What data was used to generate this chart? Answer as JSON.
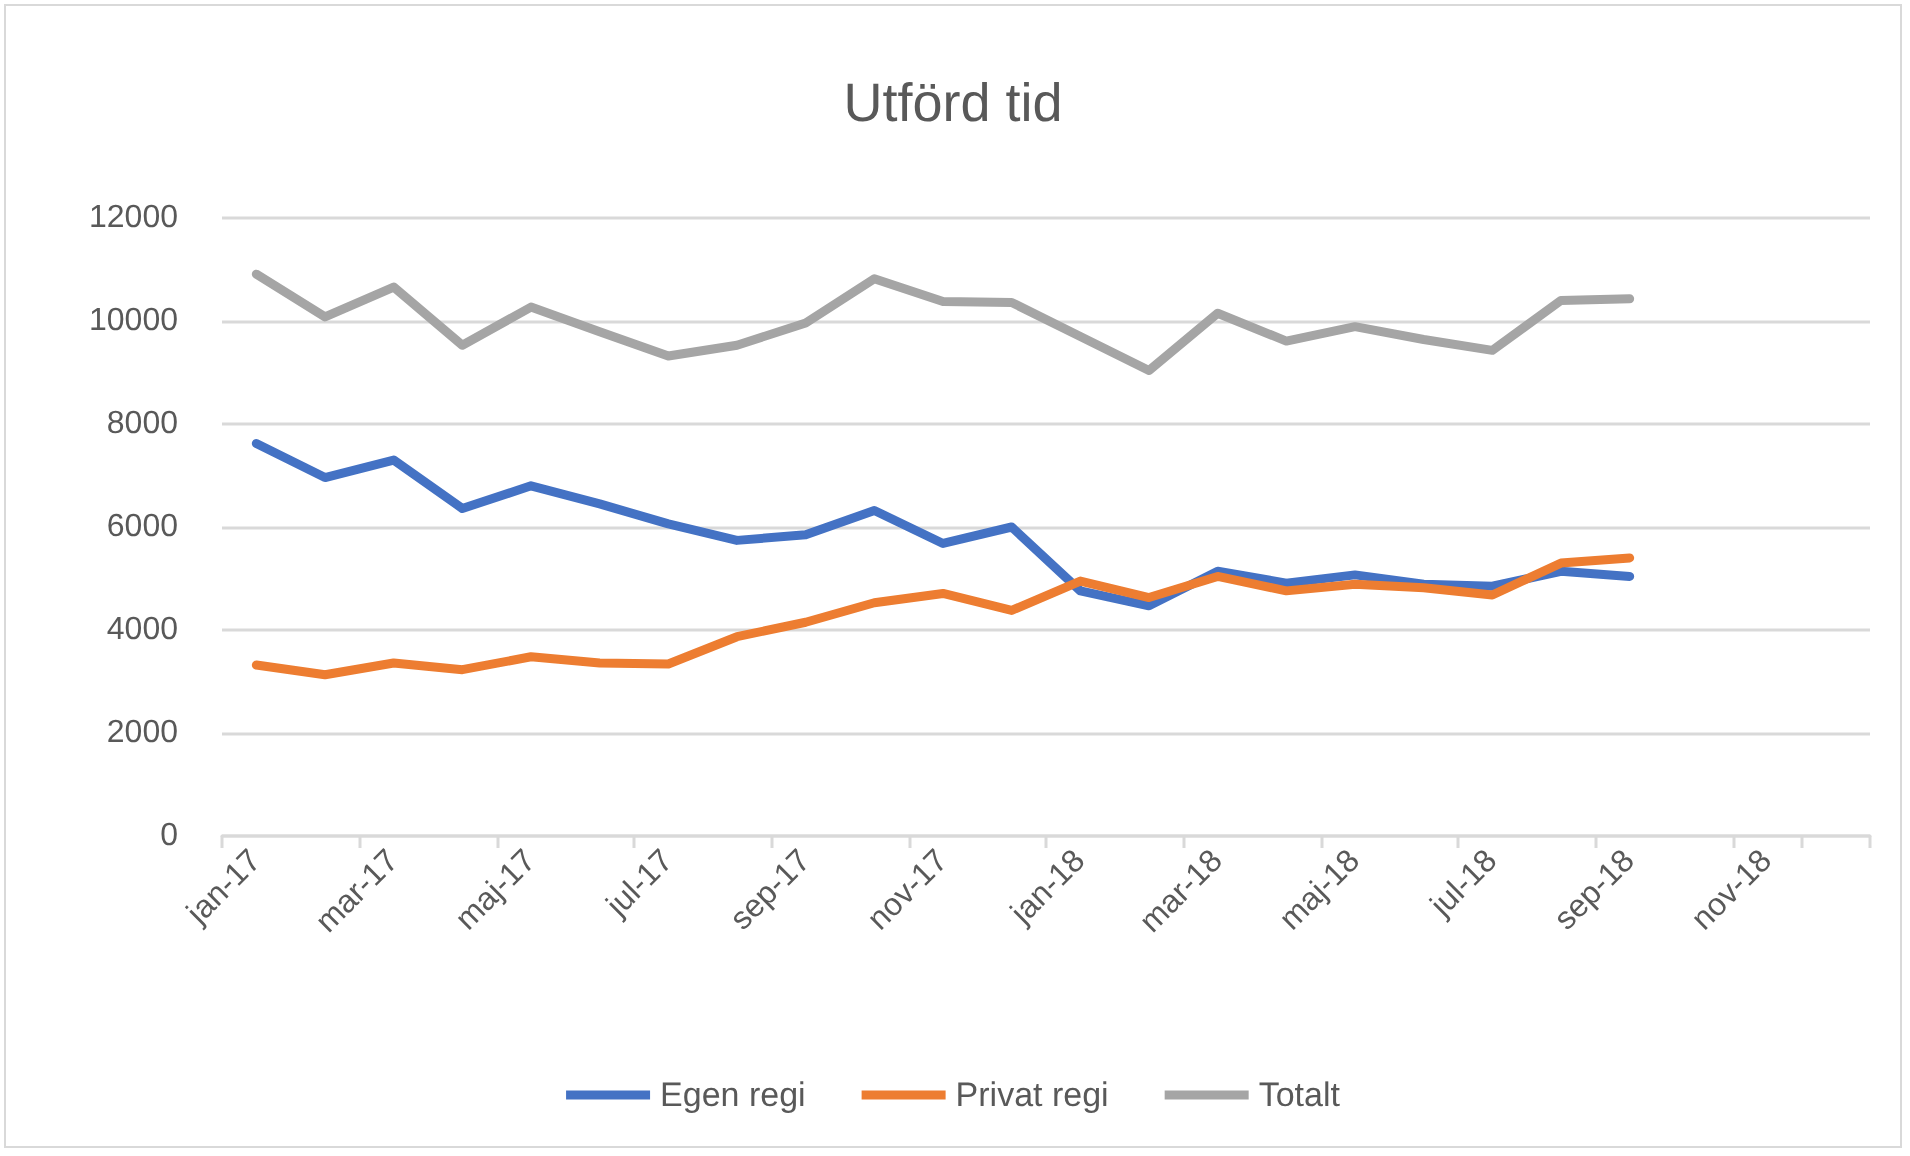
{
  "chart_data": {
    "type": "line",
    "title": "Utförd tid",
    "categories": [
      "jan-17",
      null,
      "mar-17",
      null,
      "maj-17",
      null,
      "jul-17",
      null,
      "sep-17",
      null,
      "nov-17",
      null,
      "jan-18",
      null,
      "mar-18",
      null,
      "maj-18",
      null,
      "jul-18",
      null,
      "sep-18",
      null,
      "nov-18",
      null
    ],
    "series": [
      {
        "name": "Egen regi",
        "color": "#4472c4",
        "values": [
          7620,
          6960,
          7300,
          6360,
          6800,
          6450,
          6060,
          5740,
          5850,
          6320,
          5680,
          6000,
          4760,
          4470,
          5140,
          4910,
          5070,
          4890,
          4850,
          5140,
          5040,
          null,
          null,
          null
        ]
      },
      {
        "name": "Privat regi",
        "color": "#ed7d31",
        "values": [
          3320,
          3130,
          3360,
          3230,
          3480,
          3360,
          3340,
          3870,
          4150,
          4530,
          4710,
          4380,
          4950,
          4630,
          5040,
          4760,
          4890,
          4820,
          4680,
          5300,
          5400,
          null,
          null,
          null
        ]
      },
      {
        "name": "Totalt",
        "color": "#a5a5a5",
        "values": [
          10910,
          10080,
          10660,
          9530,
          10270,
          9790,
          9320,
          9530,
          9960,
          10820,
          10380,
          10360,
          9700,
          9040,
          10150,
          9610,
          9890,
          9640,
          9430,
          10400,
          10430,
          null,
          null,
          null
        ]
      }
    ],
    "ylim": [
      0,
      12000
    ],
    "yticks": [
      0,
      2000,
      4000,
      6000,
      8000,
      10000,
      12000
    ],
    "grid": "y",
    "legend": "bottom",
    "marker": "none",
    "line_style": "solid"
  }
}
